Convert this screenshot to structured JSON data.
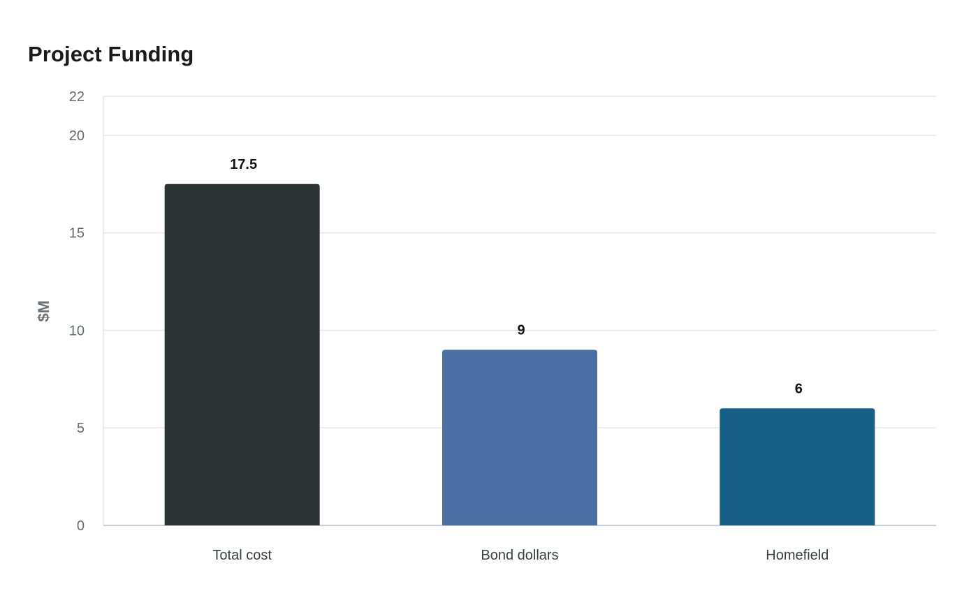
{
  "chart_data": {
    "type": "bar",
    "title": "Project Funding",
    "xlabel": "",
    "ylabel": "$M",
    "categories": [
      "Total cost",
      "Bond dollars",
      "Homefield"
    ],
    "values": [
      17.5,
      9,
      6
    ],
    "value_labels": [
      "17.5",
      "9",
      "6"
    ],
    "colors": [
      "#2d3436",
      "#4a6fa5",
      "#166088"
    ],
    "ylim": [
      0,
      22
    ],
    "yticks": [
      0,
      5,
      10,
      15,
      20,
      22
    ],
    "grid": true,
    "legend": false
  }
}
